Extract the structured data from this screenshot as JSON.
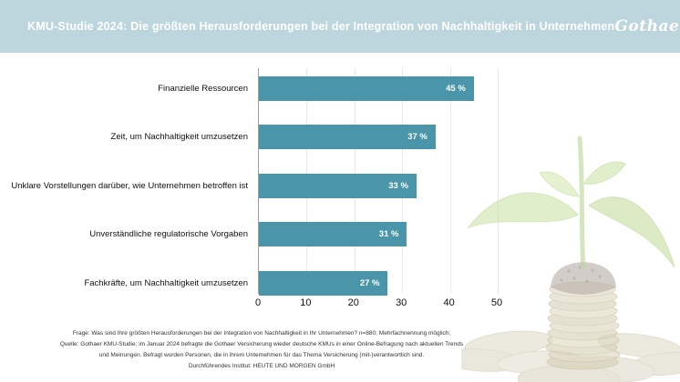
{
  "header": {
    "title": "KMU-Studie 2024: Die größten Herausforderungen bei der Integration von Nachhaltigkeit in Unternehmen",
    "logo_text": "Gothaer",
    "background_color": "#bdd6de",
    "text_color": "#ffffff"
  },
  "chart_data": {
    "type": "bar",
    "orientation": "horizontal",
    "title": "KMU-Studie 2024: Die größten Herausforderungen bei der Integration von Nachhaltigkeit in Unternehmen",
    "categories": [
      "Finanzielle Ressourcen",
      "Zeit, um Nachhaltigkeit umzusetzen",
      "Unklare Vorstellungen darüber, wie Unternehmen betroffen ist",
      "Unverständliche regulatorische Vorgaben",
      "Fachkräfte, um Nachhaltigkeit umzusetzen"
    ],
    "values": [
      45,
      37,
      33,
      31,
      27
    ],
    "value_labels": [
      "45 %",
      "37 %",
      "33 %",
      "31 %",
      "27 %"
    ],
    "unit": "%",
    "xlim": [
      0,
      50
    ],
    "x_ticks": [
      0,
      10,
      20,
      30,
      40,
      50
    ],
    "grid": true,
    "legend": false,
    "bar_color": "#4a95a9",
    "grid_color": "#e7e7e7",
    "axis_color": "#9e9e9e"
  },
  "footnotes": {
    "lines": [
      "Frage: Was sind Ihre größten Herausforderungen bei der Integration von Nachhaltigkeit in Ihr Unternehmen? n=880; Mehrfachnennung möglich;",
      "Quelle: Gothaer KMU-Studie; im Januar 2024 befragte die Gothaer Versicherung wieder deutsche KMUs in einer Online-Befragung nach aktuellen Trends",
      "und Meinungen. Befragt wurden Personen, die in ihrem Unternehmen für das Thema Versicherung (mit-)verantwortlich sind.",
      "Durchführendes Institut: HEUTE UND MORGEN GmbH"
    ]
  },
  "illustration": {
    "name": "seedling-growing-from-coin-stack"
  }
}
